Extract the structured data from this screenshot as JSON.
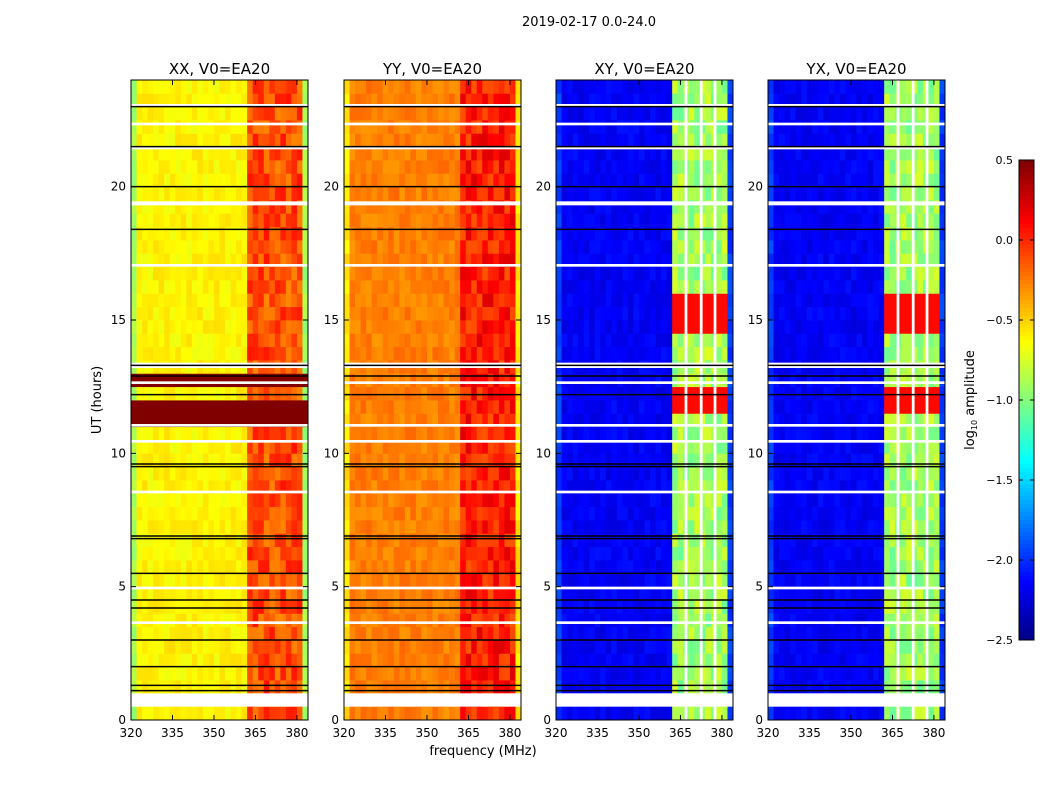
{
  "chart_data": {
    "type": "heatmap",
    "title": "2019-02-17 0.0-24.0",
    "xlabel": "frequency (MHz)",
    "ylabel": "UT (hours)",
    "xlim": [
      320,
      384
    ],
    "ylim": [
      0,
      24
    ],
    "xticks": [
      320,
      335,
      350,
      365,
      380
    ],
    "yticks": [
      0,
      5,
      10,
      15,
      20
    ],
    "xtick_labels": [
      "320",
      "335",
      "350",
      "365",
      "380"
    ],
    "ytick_labels": [
      "0",
      "5",
      "10",
      "15",
      "20"
    ],
    "colormap": "jet",
    "colorbar": {
      "label": "log10 amplitude",
      "label_main": "log",
      "label_sub": "10",
      "label_rest": " amplitude",
      "range": [
        -2.5,
        0.5
      ],
      "ticks": [
        0.5,
        0.0,
        -0.5,
        -1.0,
        -1.5,
        -2.0,
        -2.5
      ],
      "tick_labels": [
        "0.5",
        "0.0",
        "−0.5",
        "−1.0",
        "−1.5",
        "−2.0",
        "−2.5"
      ]
    },
    "panels": [
      {
        "title": "XX, V0=EA20",
        "base_log_amp": -0.6,
        "band_log_amp": -0.1,
        "saturated_hours": [
          11.5,
          12.8
        ]
      },
      {
        "title": "YY, V0=EA20",
        "base_log_amp": -0.25,
        "band_log_amp": 0.05,
        "saturated_hours": []
      },
      {
        "title": "XY, V0=EA20",
        "base_log_amp": -2.15,
        "band_log_amp": -0.9,
        "saturated_hours": []
      },
      {
        "title": "YX, V0=EA20",
        "base_log_amp": -2.15,
        "band_log_amp": -0.9,
        "saturated_hours": []
      }
    ],
    "rfi_band_mhz": [
      362,
      381
    ],
    "flagged_channels_mhz": [
      [
        366.5,
        367.5
      ],
      [
        372,
        373
      ],
      [
        377,
        378
      ]
    ],
    "flagged_time_ranges_hours": [
      [
        0.5,
        1.0
      ],
      [
        3.6,
        3.7
      ],
      [
        4.9,
        5.0
      ],
      [
        8.5,
        8.6
      ],
      [
        10.4,
        10.5
      ],
      [
        11.0,
        11.1
      ],
      [
        12.6,
        12.7
      ],
      [
        13.2,
        13.4
      ],
      [
        17.0,
        17.1
      ],
      [
        19.3,
        19.45
      ],
      [
        21.4,
        21.5
      ],
      [
        22.3,
        22.4
      ],
      [
        23.0,
        23.1
      ]
    ],
    "scan_boundaries_hours": [
      1.1,
      1.3,
      2.0,
      3.0,
      4.2,
      4.5,
      5.5,
      6.8,
      6.9,
      9.5,
      9.6,
      12.2,
      12.9,
      13.3,
      18.4,
      20.0,
      21.5,
      23.0
    ]
  }
}
